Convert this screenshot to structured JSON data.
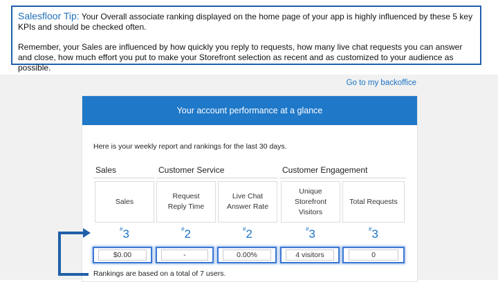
{
  "tip": {
    "title": "Salesfloor Tip:",
    "line1": " Your Overall associate ranking displayed on the home page of your app is highly influenced by these 5 key KPIs and should be checked often.",
    "line2": "Remember, your Sales are influenced by how quickly you reply to requests, how many live chat requests you can answer and close, how much effort you put to make your Storefront selection as recent and as customized to your audience as possible."
  },
  "back_link": "Go to my backoffice",
  "card": {
    "header": "Your account performance at a glance",
    "intro": "Here is your weekly report and rankings for the last 30 days."
  },
  "groups": [
    "Sales",
    "Customer Service",
    "Customer Engagement"
  ],
  "kpis": [
    {
      "label": "Sales",
      "rank_sup": "#",
      "rank": "3",
      "value": "$0.00"
    },
    {
      "label": "Request Reply Time",
      "rank_sup": "#",
      "rank": "2",
      "value": "-"
    },
    {
      "label": "Live Chat Answer Rate",
      "rank_sup": "#",
      "rank": "2",
      "value": "0.00%"
    },
    {
      "label": "Unique Storefront Visitors",
      "rank_sup": "#",
      "rank": "3",
      "value": "4 visitors"
    },
    {
      "label": "Total Requests",
      "rank_sup": "#",
      "rank": "3",
      "value": "0"
    }
  ],
  "footnote": "Rankings are based on a total of 7 users.",
  "colors": {
    "accent": "#1f78c8",
    "tip_border": "#1f5fa8",
    "highlight": "#3a78d4"
  }
}
